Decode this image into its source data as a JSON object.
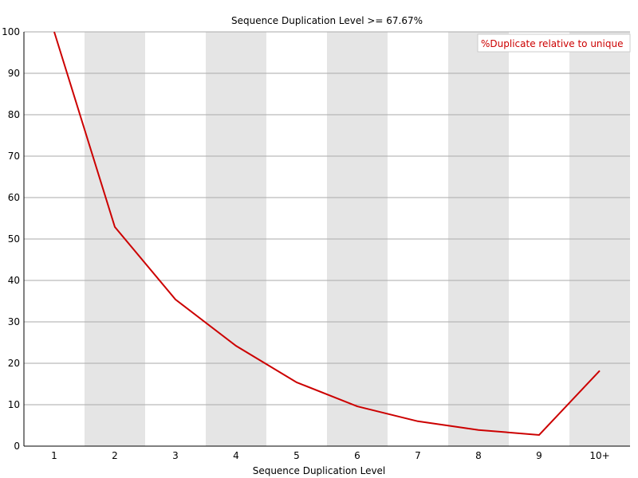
{
  "chart_data": {
    "type": "line",
    "title": "Sequence Duplication Level >= 67.67%",
    "xlabel": "Sequence Duplication Level",
    "ylabel": "",
    "categories": [
      "1",
      "2",
      "3",
      "4",
      "5",
      "6",
      "7",
      "8",
      "9",
      "10+"
    ],
    "ylim": [
      0,
      100
    ],
    "yticks": [
      0,
      10,
      20,
      30,
      40,
      50,
      60,
      70,
      80,
      90,
      100
    ],
    "grid": true,
    "legend_position": "top-right",
    "series": [
      {
        "name": "%Duplicate relative to unique",
        "color": "#cc0000",
        "values": [
          100,
          52.9,
          35.4,
          24.2,
          15.4,
          9.6,
          6.0,
          3.9,
          2.7,
          18.2
        ]
      }
    ],
    "band_color": "#e5e5e5",
    "grid_color": "#aaaaaa"
  }
}
